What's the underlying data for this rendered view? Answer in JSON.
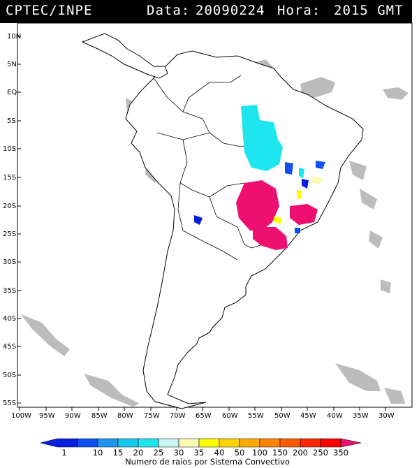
{
  "header": {
    "source": "CPTEC/INPE",
    "date_label": "Data:",
    "date": "20090224",
    "time_label": "Hora:",
    "time": "2015 GMT"
  },
  "map": {
    "lat_labels": [
      "10N",
      "5N",
      "EQ",
      "5S",
      "10S",
      "15S",
      "20S",
      "25S",
      "30S",
      "35S",
      "40S",
      "45S",
      "50S",
      "55S"
    ],
    "lon_labels": [
      "100W",
      "95W",
      "90W",
      "85W",
      "80W",
      "75W",
      "70W",
      "65W",
      "60W",
      "55W",
      "50W",
      "45W",
      "40W",
      "35W",
      "30W"
    ],
    "background_color": "#ffffff",
    "cloud_color": "#bcbcbc",
    "border_color": "#000000"
  },
  "legend": {
    "values": [
      "1",
      "10",
      "15",
      "20",
      "25",
      "30",
      "35",
      "40",
      "50",
      "100",
      "150",
      "200",
      "250",
      "350"
    ],
    "colors": [
      "#0a1ee0",
      "#0f50f0",
      "#1e96f0",
      "#14c8ee",
      "#1ee6ee",
      "#c8f5f0",
      "#fafab4",
      "#ffff00",
      "#ffd200",
      "#ffaa00",
      "#ff8200",
      "#ff5a00",
      "#ff2800",
      "#ff0000",
      "#ee1070"
    ],
    "caption": "Numero de raios por Sistema Convectivo"
  }
}
